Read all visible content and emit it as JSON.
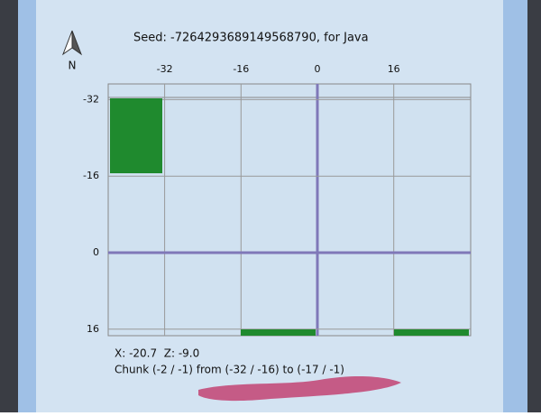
{
  "header": {
    "seed_text": "Seed: -7264293689149568790, for Java",
    "compass": "N"
  },
  "map": {
    "xticks": [
      -32,
      -16,
      0,
      16
    ],
    "yticks": [
      -32,
      -16,
      0,
      16
    ]
  },
  "footer": {
    "coords": "X: -20.7  Z: -9.0",
    "chunk": "Chunk (-2 / -1) from (-32 / -16) to (-17 / -1)"
  }
}
